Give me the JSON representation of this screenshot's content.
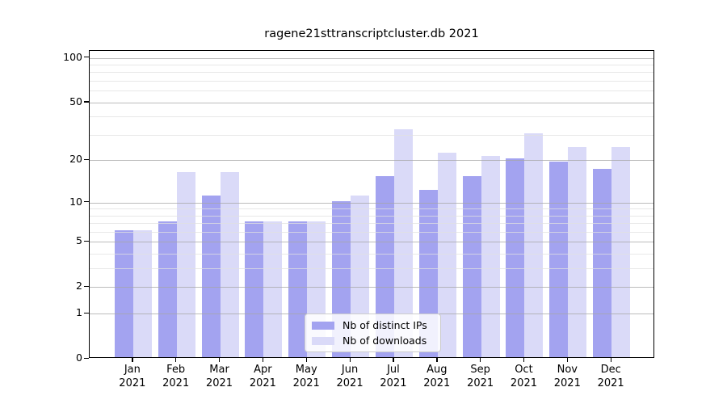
{
  "chart_data": {
    "type": "bar",
    "title": "ragene21sttranscriptcluster.db 2021",
    "year_label": "2021",
    "categories": [
      "Jan",
      "Feb",
      "Mar",
      "Apr",
      "May",
      "Jun",
      "Jul",
      "Aug",
      "Sep",
      "Oct",
      "Nov",
      "Dec"
    ],
    "series": [
      {
        "name": "Nb of distinct IPs",
        "color": "#a3a3f0",
        "values": [
          6,
          7,
          11,
          7,
          7,
          10,
          15,
          12,
          15,
          20,
          19,
          17
        ]
      },
      {
        "name": "Nb of downloads",
        "color": "#dadaf8",
        "values": [
          6,
          16,
          16,
          7,
          7,
          11,
          32,
          22,
          21,
          30,
          24,
          24
        ]
      }
    ],
    "yscale": "log1p",
    "y_major_ticks": [
      0,
      1,
      2,
      5,
      10,
      20,
      50,
      100
    ],
    "y_minor_ticks": [
      3,
      4,
      6,
      7,
      8,
      9,
      30,
      40,
      60,
      70,
      80,
      90
    ],
    "ylim": [
      0,
      111.4
    ],
    "xlabel": "",
    "ylabel": "",
    "grid": "horizontal",
    "legend_position": "lower center"
  }
}
